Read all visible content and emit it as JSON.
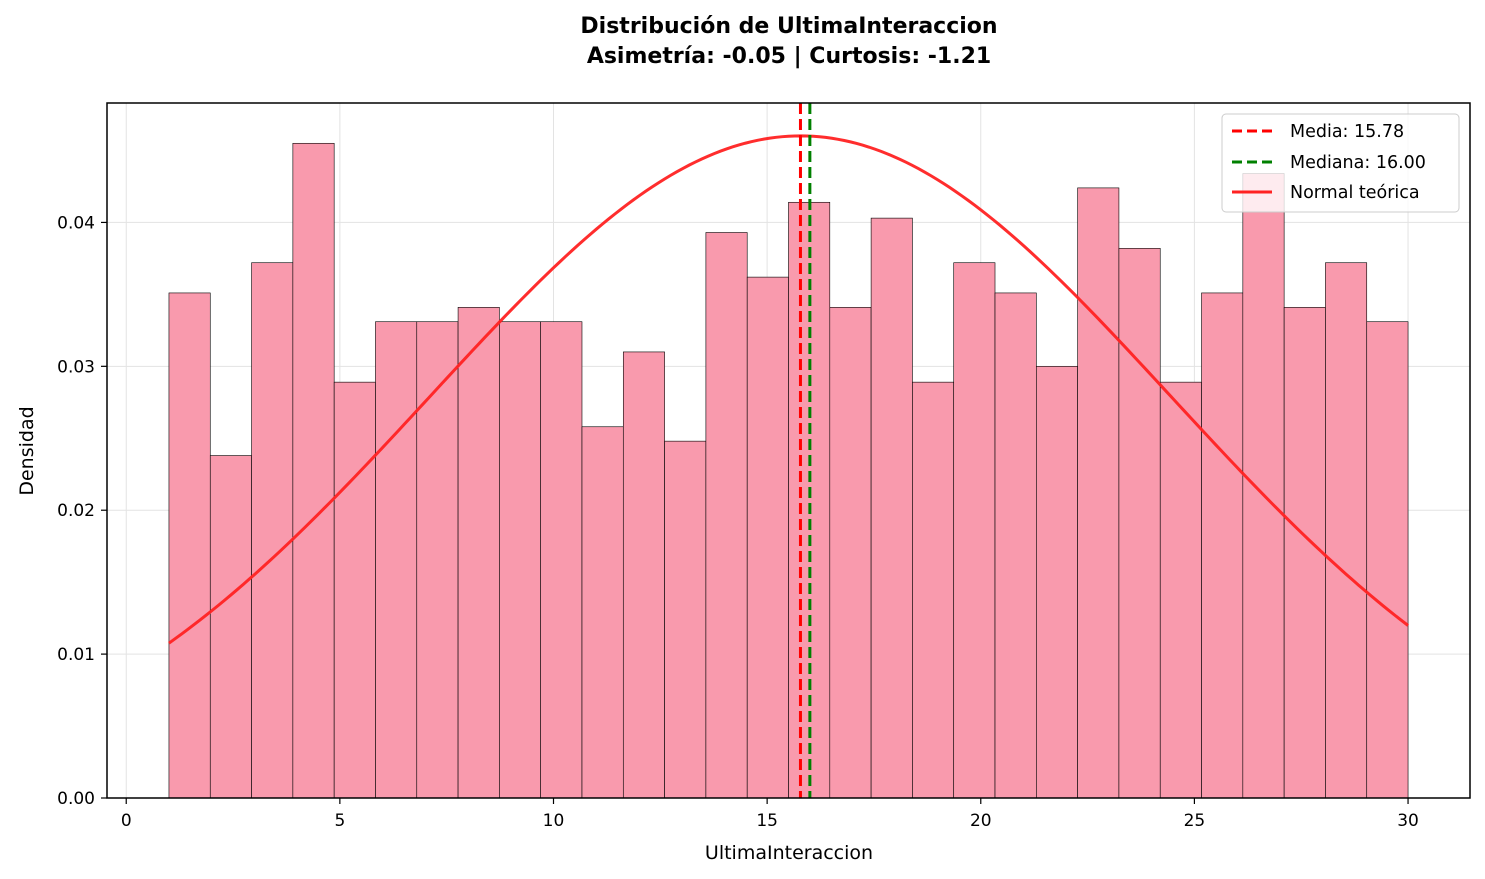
{
  "chart_data": {
    "type": "bar",
    "title": "Distribución de UltimaInteraccion",
    "subtitle": "Asimetría: -0.05 | Curtosis: -1.21",
    "xlabel": "UltimaInteraccion",
    "ylabel": "Densidad",
    "xlim": [
      -0.45,
      31.45
    ],
    "ylim": [
      0,
      0.0483
    ],
    "xticks": [
      0,
      5,
      10,
      15,
      20,
      25,
      30
    ],
    "xtick_labels": [
      "0",
      "5",
      "10",
      "15",
      "20",
      "25",
      "30"
    ],
    "yticks": [
      0,
      0.01,
      0.02,
      0.03,
      0.04
    ],
    "ytick_labels": [
      "0.00",
      "0.01",
      "0.02",
      "0.03",
      "0.04"
    ],
    "grid": true,
    "legend_position": "top-right",
    "histogram": {
      "bin_start": 1,
      "bin_end": 30,
      "bin_count": 30,
      "values": [
        0.0351,
        0.0238,
        0.0372,
        0.0455,
        0.0289,
        0.0331,
        0.0331,
        0.0341,
        0.0331,
        0.0331,
        0.0258,
        0.031,
        0.0248,
        0.0393,
        0.0362,
        0.0414,
        0.0341,
        0.0403,
        0.0289,
        0.0372,
        0.0351,
        0.03,
        0.0424,
        0.0382,
        0.0289,
        0.0351,
        0.0434,
        0.0341,
        0.0372,
        0.0331
      ],
      "color": "#f99aad",
      "edge_color": "#000000"
    },
    "series": [
      {
        "name": "Media: 15.78",
        "kind": "vline",
        "x": 15.78,
        "color": "#ff0000",
        "style": "dashed"
      },
      {
        "name": "Mediana: 16.00",
        "kind": "vline",
        "x": 16.0,
        "color": "#008000",
        "style": "dashed"
      },
      {
        "name": "Normal teórica",
        "kind": "normal_curve",
        "mean": 15.78,
        "std": 8.67,
        "x_range": [
          1,
          30
        ],
        "color": "#ff2222",
        "style": "solid"
      }
    ]
  }
}
